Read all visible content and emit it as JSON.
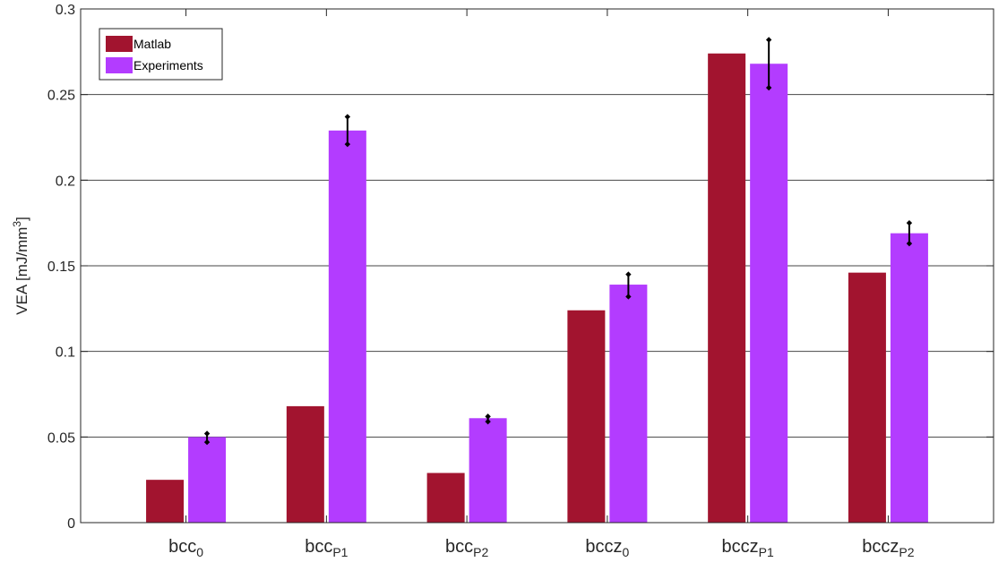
{
  "chart_data": {
    "type": "bar",
    "categories": [
      {
        "base": "bcc",
        "sub": "0"
      },
      {
        "base": "bcc",
        "sub": "P1"
      },
      {
        "base": "bcc",
        "sub": "P2"
      },
      {
        "base": "bccz",
        "sub": "0"
      },
      {
        "base": "bccz",
        "sub": "P1"
      },
      {
        "base": "bccz",
        "sub": "P2"
      }
    ],
    "series": [
      {
        "name": "Matlab",
        "color": "#a2142f",
        "values": [
          0.025,
          0.068,
          0.029,
          0.124,
          0.274,
          0.146
        ]
      },
      {
        "name": "Experiments",
        "color": "#b33cff",
        "values": [
          0.05,
          0.229,
          0.061,
          0.139,
          0.268,
          0.169
        ],
        "error_low": [
          0.047,
          0.221,
          0.059,
          0.132,
          0.254,
          0.163
        ],
        "error_high": [
          0.052,
          0.237,
          0.062,
          0.145,
          0.282,
          0.175
        ]
      }
    ],
    "ylabel": {
      "text": "VEA [mJ/mm",
      "sup": "3",
      "close": "]"
    },
    "xlabel": "",
    "title": "",
    "ylim": [
      0,
      0.3
    ],
    "yticks": [
      "0",
      "0.05",
      "0.1",
      "0.15",
      "0.2",
      "0.25",
      "0.3"
    ],
    "ytick_values": [
      0,
      0.05,
      0.1,
      0.15,
      0.2,
      0.25,
      0.3
    ],
    "grid": "horizontal",
    "legend_position": "top-left",
    "axis_color": "#262626",
    "grid_color": "#262626",
    "errorbar_color": "#000000"
  }
}
